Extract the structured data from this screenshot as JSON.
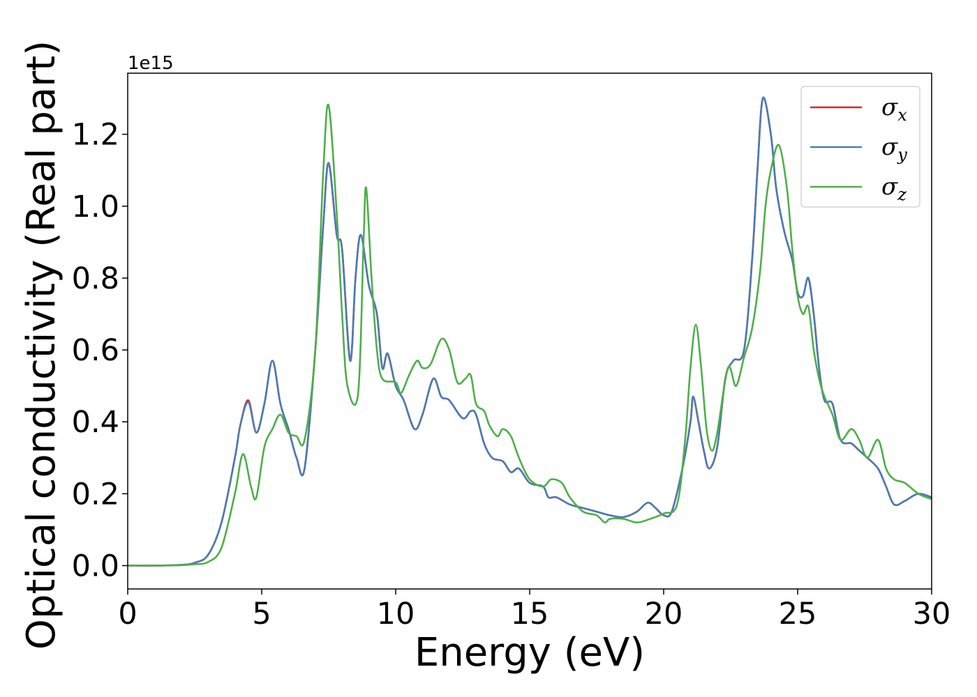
{
  "chart_data": {
    "type": "line",
    "xlabel": "Energy (eV)",
    "ylabel": "Optical conductivity (Real part)",
    "y_offset_label": "1e15",
    "xlim": [
      0,
      30
    ],
    "ylim": [
      -0.065,
      1.37
    ],
    "x_ticks": [
      0,
      5,
      10,
      15,
      20,
      25,
      30
    ],
    "x_tick_labels": [
      "0",
      "5",
      "10",
      "15",
      "20",
      "25",
      "30"
    ],
    "y_ticks": [
      0.0,
      0.2,
      0.4,
      0.6,
      0.8,
      1.0,
      1.2
    ],
    "y_tick_labels": [
      "0.0",
      "0.2",
      "0.4",
      "0.6",
      "0.8",
      "1.0",
      "1.2"
    ],
    "grid": false,
    "legend_position": "top-right",
    "series": [
      {
        "name": "σx",
        "symbol": "σ",
        "sub": "x",
        "color": "#d62728",
        "points": [
          [
            0,
            0
          ],
          [
            1,
            0
          ],
          [
            2,
            0.002
          ],
          [
            2.5,
            0.008
          ],
          [
            3,
            0.03
          ],
          [
            3.5,
            0.12
          ],
          [
            4,
            0.3
          ],
          [
            4.2,
            0.39
          ],
          [
            4.5,
            0.46
          ],
          [
            4.8,
            0.37
          ],
          [
            5.1,
            0.45
          ],
          [
            5.4,
            0.57
          ],
          [
            5.7,
            0.45
          ],
          [
            6,
            0.38
          ],
          [
            6.3,
            0.3
          ],
          [
            6.6,
            0.27
          ],
          [
            7,
            0.6
          ],
          [
            7.3,
            0.95
          ],
          [
            7.5,
            1.12
          ],
          [
            7.8,
            0.92
          ],
          [
            8,
            0.88
          ],
          [
            8.3,
            0.57
          ],
          [
            8.5,
            0.8
          ],
          [
            8.7,
            0.92
          ],
          [
            9,
            0.78
          ],
          [
            9.3,
            0.7
          ],
          [
            9.5,
            0.55
          ],
          [
            9.7,
            0.59
          ],
          [
            10,
            0.5
          ],
          [
            10.3,
            0.46
          ],
          [
            10.7,
            0.38
          ],
          [
            11,
            0.42
          ],
          [
            11.4,
            0.52
          ],
          [
            11.7,
            0.47
          ],
          [
            12,
            0.46
          ],
          [
            12.5,
            0.41
          ],
          [
            12.8,
            0.43
          ],
          [
            13,
            0.42
          ],
          [
            13.3,
            0.34
          ],
          [
            13.6,
            0.3
          ],
          [
            14,
            0.29
          ],
          [
            14.3,
            0.26
          ],
          [
            14.6,
            0.27
          ],
          [
            15,
            0.23
          ],
          [
            15.5,
            0.22
          ],
          [
            15.7,
            0.19
          ],
          [
            16,
            0.19
          ],
          [
            16.5,
            0.17
          ],
          [
            17,
            0.16
          ],
          [
            17.5,
            0.15
          ],
          [
            18,
            0.14
          ],
          [
            18.5,
            0.135
          ],
          [
            19,
            0.15
          ],
          [
            19.4,
            0.175
          ],
          [
            19.7,
            0.16
          ],
          [
            20,
            0.14
          ],
          [
            20.3,
            0.15
          ],
          [
            20.7,
            0.27
          ],
          [
            21,
            0.4
          ],
          [
            21.1,
            0.47
          ],
          [
            21.3,
            0.4
          ],
          [
            21.5,
            0.32
          ],
          [
            21.7,
            0.27
          ],
          [
            22,
            0.33
          ],
          [
            22.3,
            0.52
          ],
          [
            22.6,
            0.57
          ],
          [
            23,
            0.6
          ],
          [
            23.3,
            0.85
          ],
          [
            23.5,
            1.1
          ],
          [
            23.7,
            1.3
          ],
          [
            24,
            1.2
          ],
          [
            24.2,
            1.05
          ],
          [
            24.5,
            0.93
          ],
          [
            24.8,
            0.85
          ],
          [
            25,
            0.76
          ],
          [
            25.2,
            0.75
          ],
          [
            25.4,
            0.8
          ],
          [
            25.6,
            0.7
          ],
          [
            25.8,
            0.55
          ],
          [
            26,
            0.46
          ],
          [
            26.3,
            0.45
          ],
          [
            26.6,
            0.35
          ],
          [
            27,
            0.34
          ],
          [
            27.3,
            0.32
          ],
          [
            27.6,
            0.3
          ],
          [
            28,
            0.27
          ],
          [
            28.3,
            0.22
          ],
          [
            28.6,
            0.17
          ],
          [
            29,
            0.18
          ],
          [
            29.5,
            0.2
          ],
          [
            30,
            0.19
          ]
        ]
      },
      {
        "name": "σy",
        "symbol": "σ",
        "sub": "y",
        "color": "#4a7bb5",
        "points": [
          [
            0,
            0
          ],
          [
            1,
            0
          ],
          [
            2,
            0.002
          ],
          [
            2.5,
            0.008
          ],
          [
            3,
            0.03
          ],
          [
            3.5,
            0.12
          ],
          [
            4,
            0.3
          ],
          [
            4.2,
            0.39
          ],
          [
            4.5,
            0.455
          ],
          [
            4.8,
            0.37
          ],
          [
            5.1,
            0.45
          ],
          [
            5.4,
            0.57
          ],
          [
            5.7,
            0.45
          ],
          [
            6,
            0.38
          ],
          [
            6.3,
            0.3
          ],
          [
            6.6,
            0.27
          ],
          [
            7,
            0.6
          ],
          [
            7.3,
            0.95
          ],
          [
            7.5,
            1.12
          ],
          [
            7.8,
            0.92
          ],
          [
            8,
            0.88
          ],
          [
            8.3,
            0.57
          ],
          [
            8.5,
            0.8
          ],
          [
            8.7,
            0.92
          ],
          [
            9,
            0.78
          ],
          [
            9.3,
            0.7
          ],
          [
            9.5,
            0.55
          ],
          [
            9.7,
            0.59
          ],
          [
            10,
            0.5
          ],
          [
            10.3,
            0.46
          ],
          [
            10.7,
            0.38
          ],
          [
            11,
            0.42
          ],
          [
            11.4,
            0.52
          ],
          [
            11.7,
            0.47
          ],
          [
            12,
            0.46
          ],
          [
            12.5,
            0.41
          ],
          [
            12.8,
            0.43
          ],
          [
            13,
            0.42
          ],
          [
            13.3,
            0.34
          ],
          [
            13.6,
            0.3
          ],
          [
            14,
            0.29
          ],
          [
            14.3,
            0.26
          ],
          [
            14.6,
            0.27
          ],
          [
            15,
            0.23
          ],
          [
            15.5,
            0.22
          ],
          [
            15.7,
            0.19
          ],
          [
            16,
            0.19
          ],
          [
            16.5,
            0.17
          ],
          [
            17,
            0.16
          ],
          [
            17.5,
            0.15
          ],
          [
            18,
            0.14
          ],
          [
            18.5,
            0.135
          ],
          [
            19,
            0.15
          ],
          [
            19.4,
            0.175
          ],
          [
            19.7,
            0.16
          ],
          [
            20,
            0.14
          ],
          [
            20.3,
            0.15
          ],
          [
            20.7,
            0.27
          ],
          [
            21,
            0.4
          ],
          [
            21.1,
            0.47
          ],
          [
            21.3,
            0.4
          ],
          [
            21.5,
            0.32
          ],
          [
            21.7,
            0.27
          ],
          [
            22,
            0.33
          ],
          [
            22.3,
            0.52
          ],
          [
            22.6,
            0.57
          ],
          [
            23,
            0.6
          ],
          [
            23.3,
            0.85
          ],
          [
            23.5,
            1.1
          ],
          [
            23.7,
            1.3
          ],
          [
            24,
            1.2
          ],
          [
            24.2,
            1.05
          ],
          [
            24.5,
            0.93
          ],
          [
            24.8,
            0.85
          ],
          [
            25,
            0.76
          ],
          [
            25.2,
            0.75
          ],
          [
            25.4,
            0.8
          ],
          [
            25.6,
            0.7
          ],
          [
            25.8,
            0.55
          ],
          [
            26,
            0.46
          ],
          [
            26.3,
            0.45
          ],
          [
            26.6,
            0.35
          ],
          [
            27,
            0.34
          ],
          [
            27.3,
            0.32
          ],
          [
            27.6,
            0.3
          ],
          [
            28,
            0.27
          ],
          [
            28.3,
            0.22
          ],
          [
            28.6,
            0.17
          ],
          [
            29,
            0.18
          ],
          [
            29.5,
            0.2
          ],
          [
            30,
            0.19
          ]
        ]
      },
      {
        "name": "σz",
        "symbol": "σ",
        "sub": "z",
        "color": "#4daf4a",
        "points": [
          [
            0,
            0
          ],
          [
            1,
            0
          ],
          [
            2,
            0.001
          ],
          [
            2.5,
            0.004
          ],
          [
            3,
            0.01
          ],
          [
            3.5,
            0.05
          ],
          [
            4,
            0.2
          ],
          [
            4.3,
            0.31
          ],
          [
            4.6,
            0.22
          ],
          [
            4.8,
            0.19
          ],
          [
            5.1,
            0.33
          ],
          [
            5.4,
            0.38
          ],
          [
            5.7,
            0.42
          ],
          [
            6,
            0.37
          ],
          [
            6.3,
            0.36
          ],
          [
            6.6,
            0.35
          ],
          [
            7,
            0.6
          ],
          [
            7.3,
            1.1
          ],
          [
            7.5,
            1.28
          ],
          [
            7.8,
            0.98
          ],
          [
            8,
            0.7
          ],
          [
            8.2,
            0.5
          ],
          [
            8.6,
            0.48
          ],
          [
            8.8,
            0.9
          ],
          [
            8.9,
            1.05
          ],
          [
            9.1,
            0.8
          ],
          [
            9.3,
            0.6
          ],
          [
            9.5,
            0.52
          ],
          [
            10,
            0.51
          ],
          [
            10.2,
            0.48
          ],
          [
            10.5,
            0.53
          ],
          [
            10.8,
            0.57
          ],
          [
            11,
            0.55
          ],
          [
            11.3,
            0.56
          ],
          [
            11.7,
            0.63
          ],
          [
            12,
            0.6
          ],
          [
            12.3,
            0.51
          ],
          [
            12.6,
            0.52
          ],
          [
            12.8,
            0.53
          ],
          [
            13,
            0.45
          ],
          [
            13.3,
            0.43
          ],
          [
            13.5,
            0.39
          ],
          [
            13.8,
            0.36
          ],
          [
            14,
            0.38
          ],
          [
            14.3,
            0.36
          ],
          [
            14.6,
            0.3
          ],
          [
            15,
            0.24
          ],
          [
            15.5,
            0.22
          ],
          [
            15.8,
            0.24
          ],
          [
            16.2,
            0.23
          ],
          [
            16.5,
            0.19
          ],
          [
            17,
            0.15
          ],
          [
            17.5,
            0.14
          ],
          [
            17.8,
            0.12
          ],
          [
            18,
            0.13
          ],
          [
            18.5,
            0.13
          ],
          [
            19,
            0.12
          ],
          [
            19.5,
            0.13
          ],
          [
            20,
            0.145
          ],
          [
            20.5,
            0.17
          ],
          [
            20.8,
            0.35
          ],
          [
            21,
            0.55
          ],
          [
            21.2,
            0.67
          ],
          [
            21.4,
            0.55
          ],
          [
            21.6,
            0.38
          ],
          [
            21.8,
            0.32
          ],
          [
            22,
            0.37
          ],
          [
            22.4,
            0.55
          ],
          [
            22.7,
            0.5
          ],
          [
            23,
            0.58
          ],
          [
            23.3,
            0.66
          ],
          [
            23.6,
            0.82
          ],
          [
            23.8,
            1.0
          ],
          [
            24,
            1.1
          ],
          [
            24.3,
            1.17
          ],
          [
            24.6,
            1.05
          ],
          [
            24.8,
            0.88
          ],
          [
            25,
            0.75
          ],
          [
            25.2,
            0.7
          ],
          [
            25.4,
            0.72
          ],
          [
            25.6,
            0.6
          ],
          [
            25.8,
            0.52
          ],
          [
            26,
            0.47
          ],
          [
            26.3,
            0.42
          ],
          [
            26.6,
            0.35
          ],
          [
            27,
            0.38
          ],
          [
            27.3,
            0.35
          ],
          [
            27.6,
            0.3
          ],
          [
            28,
            0.35
          ],
          [
            28.3,
            0.27
          ],
          [
            28.6,
            0.24
          ],
          [
            29,
            0.23
          ],
          [
            29.5,
            0.2
          ],
          [
            30,
            0.185
          ]
        ]
      }
    ]
  }
}
